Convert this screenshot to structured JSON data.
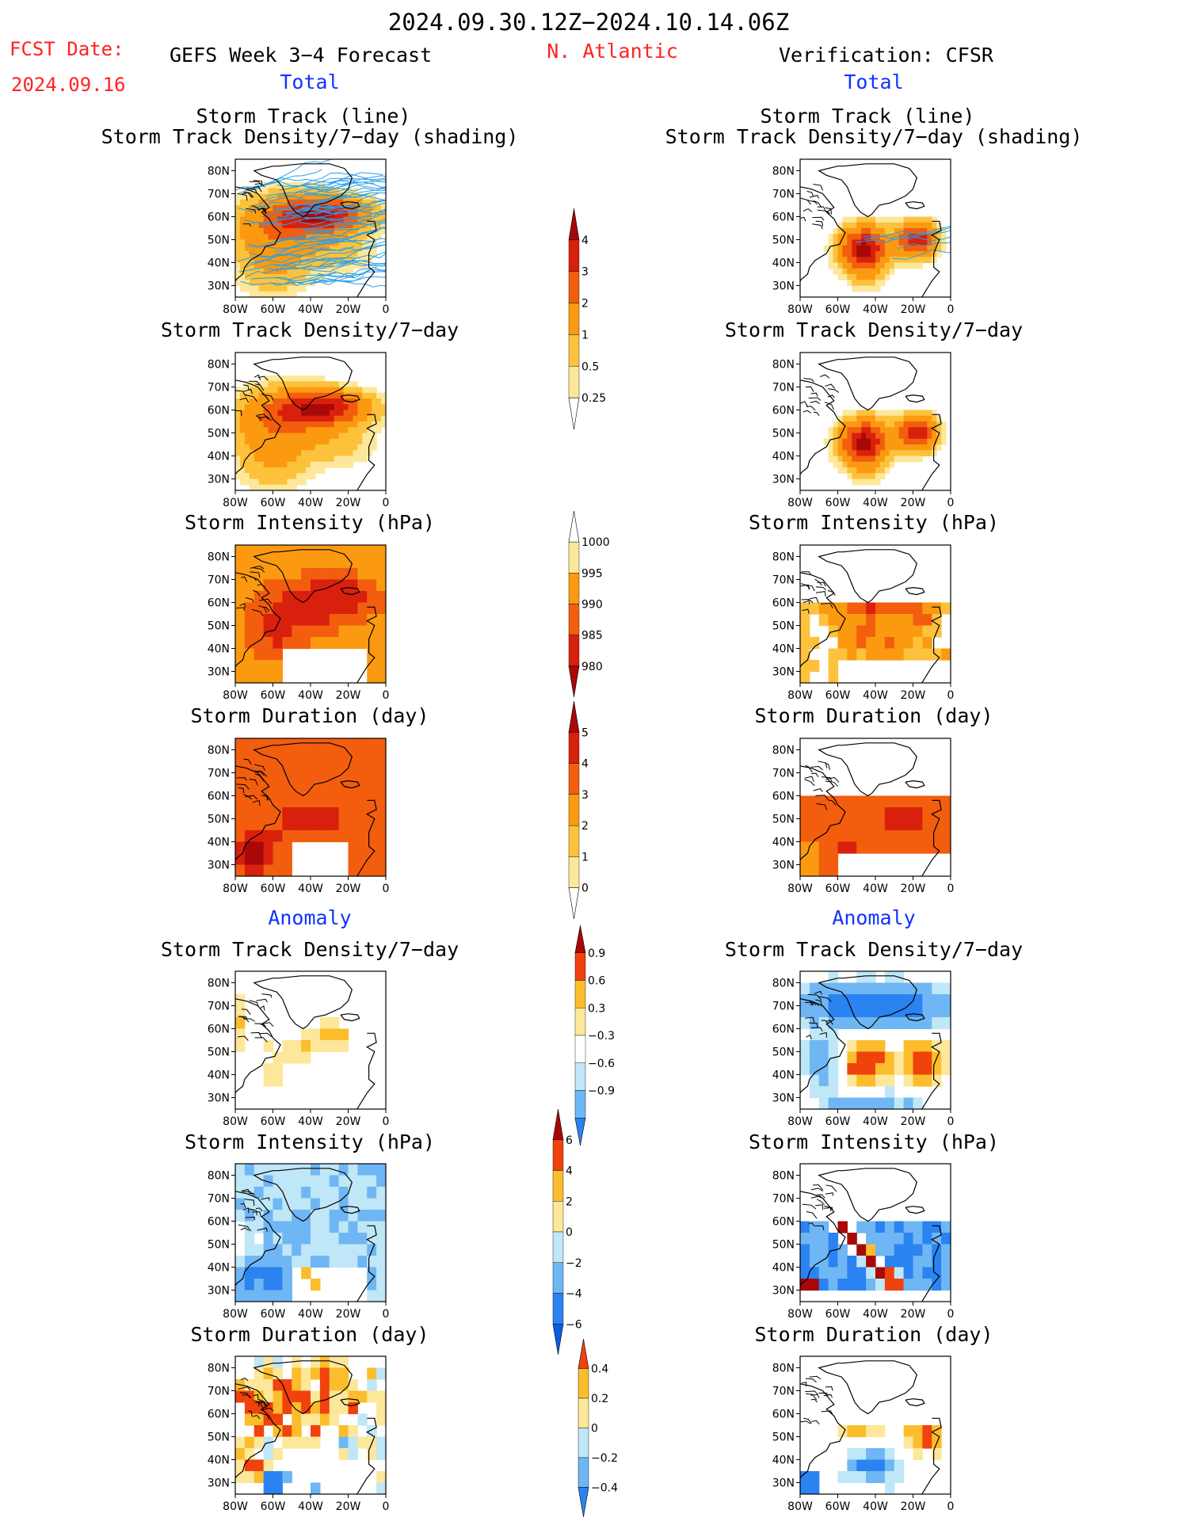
{
  "header": {
    "period": "2024.09.30.12Z−2024.10.14.06Z",
    "fcst_label": "FCST Date:",
    "fcst_date": "2024.09.16",
    "model": "GEFS Week 3−4 Forecast",
    "region": "N. Atlantic",
    "verification": "Verification: CFSR"
  },
  "sections": {
    "total_left": "Total",
    "total_right": "Total",
    "anomaly_left": "Anomaly",
    "anomaly_right": "Anomaly"
  },
  "panel_titles": {
    "track_line": "Storm Track (line)",
    "track_shading": "Storm Track Density/7−day (shading)",
    "density": "Storm Track Density/7−day",
    "intensity": "Storm Intensity (hPa)",
    "duration": "Storm Duration (day)"
  },
  "axes": {
    "lat_ticks": [
      "80N",
      "70N",
      "60N",
      "50N",
      "40N",
      "30N"
    ],
    "lon_ticks": [
      "80W",
      "60W",
      "40W",
      "20W",
      "0"
    ]
  },
  "colorbars": {
    "density_total": [
      "4",
      "3",
      "2",
      "1",
      "0.5",
      "0.25"
    ],
    "intensity_total": [
      "1000",
      "995",
      "990",
      "985",
      "980"
    ],
    "duration_total": [
      "5",
      "4",
      "3",
      "2",
      "1",
      "0"
    ],
    "density_anom": [
      "0.9",
      "0.6",
      "0.3",
      "−0.3",
      "−0.6",
      "−0.9"
    ],
    "intensity_anom": [
      "6",
      "4",
      "2",
      "0",
      "−2",
      "−4",
      "−6"
    ],
    "duration_anom": [
      "0.4",
      "0.2",
      "0",
      "−0.2",
      "−0.4"
    ]
  },
  "colors": {
    "total_scale": [
      "#fff8b4",
      "#fde79a",
      "#fcc23c",
      "#fb9a10",
      "#f25d0e",
      "#d8200c",
      "#a80808"
    ],
    "anom_scale": [
      "#0d5ce6",
      "#2a83f0",
      "#6fb6f4",
      "#bfe7f7",
      "#ffffff",
      "#fde79a",
      "#fcbd2c",
      "#f87d10",
      "#f0420c",
      "#a80808"
    ],
    "title_red": "#ff2222",
    "label_blue": "#1133ff",
    "track_line": "#2a9ee8"
  },
  "chart_data": [
    {
      "panel": "GEFS Total",
      "type": "heatmap",
      "title": "Storm Track Density/7−day",
      "extent": {
        "lon": [
          -80,
          0
        ],
        "lat": [
          25,
          85
        ]
      },
      "hotspot": "high density (3−4) along 55–65N, 20–50W"
    },
    {
      "panel": "GEFS Total",
      "type": "heatmap",
      "title": "Storm Intensity (hPa)",
      "range": [
        980,
        1000
      ]
    },
    {
      "panel": "GEFS Total",
      "type": "heatmap",
      "title": "Storm Duration (day)",
      "range": [
        0,
        5
      ]
    },
    {
      "panel": "CFSR Total",
      "type": "heatmap",
      "title": "Storm Track Density/7−day",
      "hotspot": "two maxima near 45N 45W and 50N 20W"
    },
    {
      "panel": "CFSR Total",
      "type": "heatmap",
      "title": "Storm Intensity (hPa)",
      "range": [
        980,
        1000
      ]
    },
    {
      "panel": "CFSR Total",
      "type": "heatmap",
      "title": "Storm Duration (day)",
      "range": [
        0,
        5
      ]
    },
    {
      "panel": "GEFS Anomaly",
      "type": "heatmap",
      "title": "Storm Track Density/7−day",
      "range": [
        -0.9,
        0.9
      ]
    },
    {
      "panel": "GEFS Anomaly",
      "type": "heatmap",
      "title": "Storm Intensity (hPa)",
      "range": [
        -6,
        6
      ]
    },
    {
      "panel": "GEFS Anomaly",
      "type": "heatmap",
      "title": "Storm Duration (day)",
      "range": [
        -0.4,
        0.4
      ]
    },
    {
      "panel": "CFSR Anomaly",
      "type": "heatmap",
      "title": "Storm Track Density/7−day",
      "range": [
        -0.9,
        0.9
      ]
    },
    {
      "panel": "CFSR Anomaly",
      "type": "heatmap",
      "title": "Storm Intensity (hPa)",
      "range": [
        -6,
        6
      ]
    },
    {
      "panel": "CFSR Anomaly",
      "type": "heatmap",
      "title": "Storm Duration (day)",
      "range": [
        -0.4,
        0.4
      ]
    }
  ]
}
